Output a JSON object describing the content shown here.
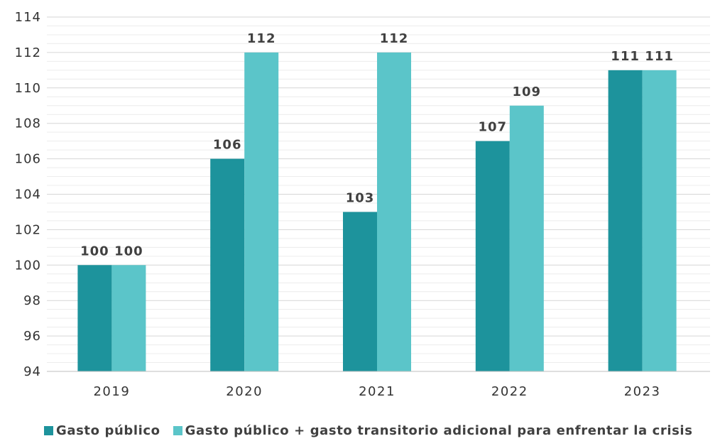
{
  "chart_data": {
    "type": "bar",
    "categories": [
      "2019",
      "2020",
      "2021",
      "2022",
      "2023"
    ],
    "series": [
      {
        "name": "Gasto público",
        "values": [
          100,
          106,
          103,
          107,
          111
        ],
        "color": "#1d939c"
      },
      {
        "name": "Gasto público + gasto transitorio adicional para enfrentar la crisis",
        "values": [
          100,
          112,
          112,
          109,
          111
        ],
        "color": "#5bc5c9"
      }
    ],
    "y_ticks": [
      "94",
      "96",
      "98",
      "100",
      "102",
      "104",
      "106",
      "108",
      "110",
      "112",
      "114"
    ],
    "ylim": [
      94,
      114
    ],
    "grid": true,
    "legend_position": "bottom",
    "data_labels": true
  }
}
